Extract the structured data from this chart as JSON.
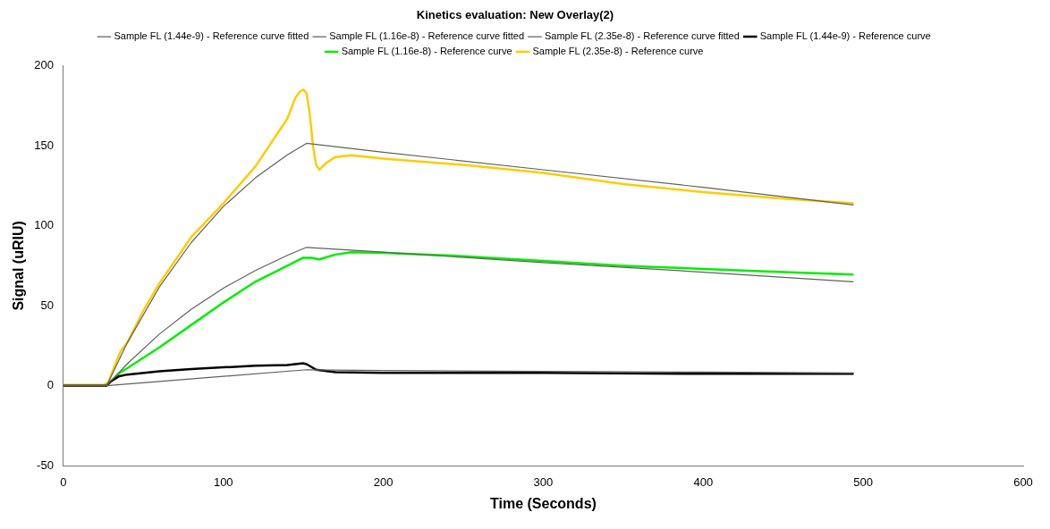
{
  "chart_data": {
    "type": "line",
    "title": "Kinetics evaluation: New Overlay(2)",
    "xlabel": "Time (Seconds)",
    "ylabel": "Signal (uRIU)",
    "xlim": [
      0,
      600
    ],
    "xticks": [
      0,
      100,
      200,
      300,
      400,
      500,
      600
    ],
    "ylim": [
      -50,
      200
    ],
    "yticks": [
      -50,
      0,
      50,
      100,
      150,
      200
    ],
    "grid": false,
    "legend": "top",
    "marker": "none",
    "line_style": "solid",
    "series": [
      {
        "name": "Sample FL (1.44e-9) - Reference curve fitted",
        "color": "#606060",
        "x": [
          0,
          27,
          152,
          200,
          300,
          400,
          494
        ],
        "values": [
          0,
          0,
          10,
          9.5,
          9,
          8.5,
          8
        ]
      },
      {
        "name": "Sample FL (1.16e-8) - Reference curve fitted",
        "color": "#606060",
        "x": [
          0,
          27,
          40,
          60,
          80,
          100,
          120,
          140,
          152,
          200,
          300,
          400,
          494
        ],
        "values": [
          0,
          0,
          13.8,
          32.3,
          47.9,
          61,
          72,
          81.5,
          86.5,
          83.5,
          77,
          71,
          65
        ]
      },
      {
        "name": "Sample FL (2.35e-8) - Reference curve fitted",
        "color": "#606060",
        "x": [
          0,
          27,
          40,
          60,
          80,
          100,
          120,
          140,
          152,
          200,
          300,
          400,
          494
        ],
        "values": [
          0,
          0,
          27,
          61.7,
          89.6,
          112,
          129.9,
          144.3,
          151.5,
          146,
          135,
          124,
          113
        ]
      },
      {
        "name": "Sample FL (1.44e-9) - Reference curve",
        "color": "#000000",
        "x": [
          0,
          27,
          30,
          35,
          40,
          60,
          80,
          100,
          120,
          140,
          150,
          152,
          158,
          170,
          200,
          300,
          400,
          494
        ],
        "values": [
          0,
          0,
          3,
          6,
          7,
          9,
          10.5,
          11.5,
          12.5,
          13,
          14,
          13.5,
          10,
          8.5,
          8,
          8,
          7.5,
          7.5
        ]
      },
      {
        "name": "Sample FL (1.16e-8) - Reference curve",
        "color": "#00ee00",
        "x": [
          30,
          35,
          40,
          60,
          80,
          100,
          120,
          140,
          150,
          155,
          160,
          170,
          180,
          200,
          250,
          300,
          350,
          400,
          450,
          494
        ],
        "values": [
          3,
          8,
          11,
          24,
          38,
          52,
          65,
          75,
          80,
          80,
          79,
          82,
          83.5,
          83,
          81,
          78,
          75,
          73,
          71,
          69.5
        ]
      },
      {
        "name": "Sample FL (2.35e-8) - Reference curve",
        "color": "#ffcc00",
        "x": [
          0,
          25,
          28,
          33,
          36,
          40,
          45,
          50,
          60,
          80,
          100,
          120,
          140,
          145,
          148,
          150,
          152,
          154,
          156,
          158,
          160,
          164,
          170,
          180,
          200,
          250,
          300,
          350,
          400,
          450,
          494
        ],
        "values": [
          0.5,
          0.5,
          2,
          15,
          22,
          27,
          37,
          47,
          64,
          93,
          114,
          137,
          167,
          180,
          184,
          185,
          183,
          170,
          150,
          138,
          135,
          139,
          143,
          144,
          142,
          138,
          133,
          126,
          121,
          117,
          114
        ]
      }
    ]
  }
}
